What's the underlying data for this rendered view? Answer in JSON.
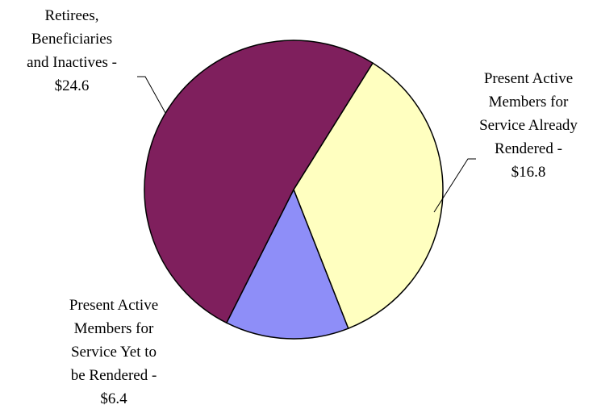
{
  "chart_data": {
    "type": "pie",
    "title": "",
    "start_angle_deg": 58,
    "direction": "clockwise",
    "slices": [
      {
        "lines": [
          "Present Active",
          "Members for",
          "Service Already",
          "Rendered -",
          "$16.8"
        ],
        "value": 16.8,
        "color": "#FFFFC0"
      },
      {
        "lines": [
          "Present Active",
          "Members for",
          "Service Yet to",
          "be Rendered -",
          "$6.4"
        ],
        "value": 6.4,
        "color": "#8E8EF8"
      },
      {
        "lines": [
          "Retirees,",
          "Beneficiaries",
          "and Inactives -",
          "$24.6"
        ],
        "value": 24.6,
        "color": "#7F1F5D"
      }
    ]
  }
}
